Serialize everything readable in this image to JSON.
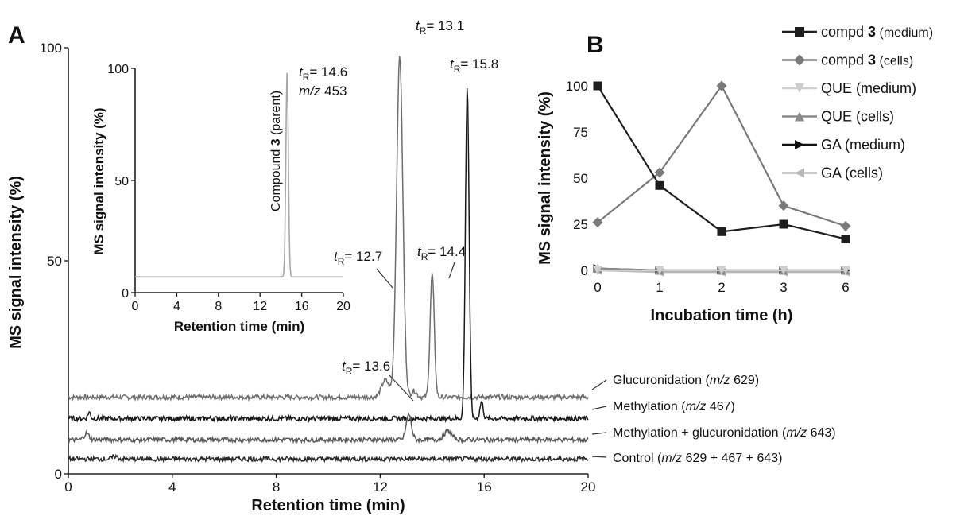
{
  "chart_data": [
    {
      "id": "A",
      "type": "line",
      "panel_label": "A",
      "xlabel": "Retention time (min)",
      "ylabel": "MS signal intensity (%)",
      "xlim": [
        0,
        20
      ],
      "ylim": [
        0,
        100
      ],
      "xticks": [
        "0",
        "4",
        "8",
        "12",
        "16",
        "20"
      ],
      "yticks": [
        "0",
        "50",
        "100"
      ],
      "series": [
        {
          "name": "Glucuronidation",
          "label": "Glucuronidation (m/z 629)",
          "label_main": "Glucuronidation (",
          "label_italic": "m/z",
          "label_tail": " 629)",
          "color": "#6e6e6e",
          "baseline": 18,
          "peaks": [
            [
              12.2,
              4,
              0.15
            ],
            [
              12.75,
              80,
              0.12
            ],
            [
              14.0,
              29,
              0.08
            ],
            [
              13.3,
              1.5,
              0.1
            ]
          ]
        },
        {
          "name": "Methylation",
          "label": "Methylation (m/z 467)",
          "label_main": "Methylation (",
          "label_italic": "m/z",
          "label_tail": " 467)",
          "color": "#1a1a1a",
          "baseline": 13,
          "peaks": [
            [
              15.35,
              78,
              0.07
            ],
            [
              15.9,
              4,
              0.06
            ],
            [
              0.8,
              1.5,
              0.05
            ]
          ]
        },
        {
          "name": "Methylation + glucuronidation",
          "label": "Methylation + glucuronidation (m/z 643)",
          "label_main": "Methylation + glucuronidation (",
          "label_italic": "m/z",
          "label_tail": " 643)",
          "color": "#5a5a5a",
          "baseline": 8,
          "peaks": [
            [
              13.1,
              6,
              0.1
            ],
            [
              14.6,
              2,
              0.15
            ],
            [
              0.7,
              1.5,
              0.1
            ]
          ]
        },
        {
          "name": "Control",
          "label": "Control (m/z 629 + 467 + 643)",
          "label_main": "Control (",
          "label_italic": "m/z",
          "label_tail": " 629 + 467 + 643)",
          "color": "#2a2a2a",
          "baseline": 3.5,
          "peaks": [
            [
              1.8,
              0.6,
              0.1
            ]
          ]
        }
      ],
      "annotations": [
        {
          "t": "t",
          "s": "R",
          "rest": "= 13.1",
          "x": 12.75
        },
        {
          "t": "t",
          "s": "R",
          "rest": "= 15.8",
          "x": 15.35
        },
        {
          "t": "t",
          "s": "R",
          "rest": "= 12.7",
          "x": 12.2
        },
        {
          "t": "t",
          "s": "R",
          "rest": "= 14.4",
          "x": 14.0
        },
        {
          "t": "t",
          "s": "R",
          "rest": "= 13.6",
          "x": 13.1
        }
      ]
    },
    {
      "id": "inset",
      "type": "line",
      "xlabel": "Retention time (min)",
      "ylabel": "MS signal intensity (%)",
      "xlim": [
        0,
        20
      ],
      "ylim": [
        0,
        100
      ],
      "xticks": [
        "0",
        "4",
        "8",
        "12",
        "16",
        "20"
      ],
      "yticks": [
        "0",
        "50",
        "100"
      ],
      "series": [
        {
          "color": "#a8a8a8",
          "baseline": 7,
          "peaks": [
            [
              14.6,
              91,
              0.12
            ]
          ]
        }
      ],
      "peak_annotation": {
        "t": "t",
        "s": "R",
        "rest": "= 14.6",
        "line2_italic": "m/z",
        "line2_tail": " 453"
      },
      "vertical_label_pre": "Compound ",
      "vertical_label_bold": "3",
      "vertical_label_post": " (parent)"
    },
    {
      "id": "B",
      "type": "line",
      "panel_label": "B",
      "xlabel": "Incubation time (h)",
      "ylabel": "MS signal intensity (%)",
      "categories": [
        "0",
        "1",
        "2",
        "3",
        "6"
      ],
      "ylim": [
        0,
        100
      ],
      "yticks": [
        "0",
        "25",
        "50",
        "75",
        "100"
      ],
      "series": [
        {
          "name_pre": "compd ",
          "name_bold": "3",
          "name_post": " (medium)",
          "marker": "square",
          "color": "#1e1e1e",
          "values": [
            100,
            46,
            21,
            25,
            17
          ]
        },
        {
          "name_pre": "compd ",
          "name_bold": "3",
          "name_post": " (cells)",
          "marker": "diamond",
          "color": "#7a7a7a",
          "values": [
            26,
            53,
            100,
            35,
            24
          ]
        },
        {
          "name_pre": "QUE (medium)",
          "name_bold": "",
          "name_post": "",
          "marker": "tri-down",
          "color": "#cfcfcf",
          "values": [
            0,
            0,
            0,
            0,
            0
          ]
        },
        {
          "name_pre": "QUE (cells)",
          "name_bold": "",
          "name_post": "",
          "marker": "tri-up",
          "color": "#8a8a8a",
          "values": [
            1,
            0,
            0,
            0,
            0
          ]
        },
        {
          "name_pre": "GA (medium)",
          "name_bold": "",
          "name_post": "",
          "marker": "tri-right",
          "color": "#111111",
          "values": [
            1,
            0,
            0,
            0,
            0
          ]
        },
        {
          "name_pre": "GA (cells)",
          "name_bold": "",
          "name_post": "",
          "marker": "tri-left",
          "color": "#b8b8b8",
          "values": [
            0,
            -1,
            -1,
            -1,
            -1
          ]
        }
      ],
      "legend_position": "top-right"
    }
  ]
}
